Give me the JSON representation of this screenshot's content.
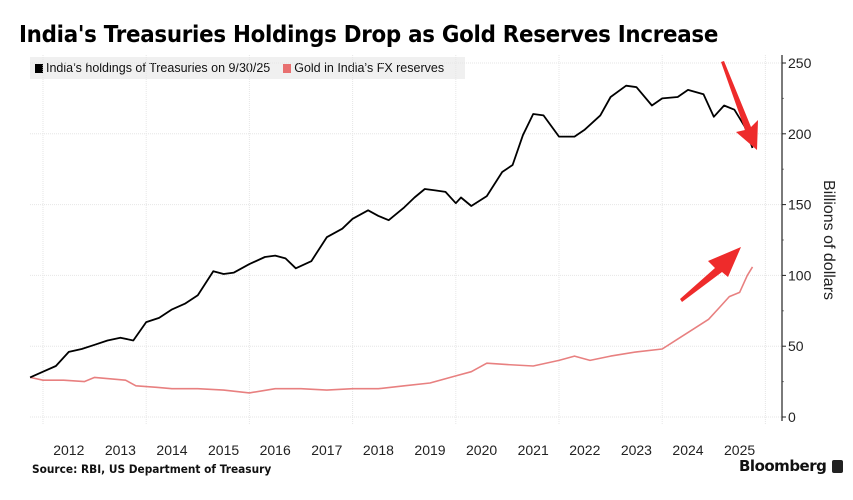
{
  "chart_data": {
    "type": "line",
    "title": "India's Treasuries Holdings Drop as Gold Reserves Increase",
    "xlabel": "",
    "ylabel": "Billions of dollars",
    "ylim": [
      0,
      250
    ],
    "xlim": [
      2011.75,
      2026.3
    ],
    "y_ticks": [
      0,
      50,
      100,
      150,
      200,
      250
    ],
    "x_tick_labels": [
      "2012",
      "2013",
      "2014",
      "2015",
      "2016",
      "2017",
      "2018",
      "2019",
      "2020",
      "2021",
      "2022",
      "2023",
      "2024",
      "2025"
    ],
    "grid": true,
    "legend_position": "top-left",
    "series": [
      {
        "name": "India's holdings of Treasuries on 9/30/25",
        "color": "#000000",
        "x": [
          2011.75,
          2012.0,
          2012.25,
          2012.5,
          2012.75,
          2013.0,
          2013.25,
          2013.5,
          2013.75,
          2014.0,
          2014.25,
          2014.5,
          2014.75,
          2015.0,
          2015.3,
          2015.5,
          2015.7,
          2016.0,
          2016.3,
          2016.5,
          2016.7,
          2016.9,
          2017.2,
          2017.5,
          2017.8,
          2018.0,
          2018.3,
          2018.5,
          2018.7,
          2019.0,
          2019.2,
          2019.4,
          2019.6,
          2019.8,
          2020.0,
          2020.1,
          2020.3,
          2020.6,
          2020.9,
          2021.1,
          2021.3,
          2021.5,
          2021.7,
          2022.0,
          2022.3,
          2022.5,
          2022.8,
          2023.0,
          2023.3,
          2023.5,
          2023.8,
          2024.0,
          2024.3,
          2024.5,
          2024.8,
          2025.0,
          2025.2,
          2025.4,
          2025.6,
          2025.75
        ],
        "values": [
          28,
          32,
          36,
          46,
          48,
          51,
          54,
          56,
          54,
          67,
          70,
          76,
          80,
          86,
          103,
          101,
          102,
          108,
          113,
          114,
          112,
          105,
          110,
          127,
          133,
          140,
          146,
          142,
          139,
          148,
          155,
          161,
          160,
          159,
          151,
          155,
          149,
          156,
          173,
          178,
          199,
          214,
          213,
          198,
          198,
          203,
          213,
          226,
          234,
          233,
          220,
          225,
          226,
          231,
          228,
          212,
          220,
          217,
          205,
          190
        ]
      },
      {
        "name": "Gold in India's FX reserves",
        "color": "#e88080",
        "x": [
          2011.75,
          2012.0,
          2012.4,
          2012.8,
          2013.0,
          2013.3,
          2013.6,
          2013.8,
          2014.2,
          2014.5,
          2015.0,
          2015.5,
          2016.0,
          2016.5,
          2017.0,
          2017.5,
          2018.0,
          2018.5,
          2019.0,
          2019.5,
          2020.0,
          2020.3,
          2020.6,
          2021.0,
          2021.5,
          2022.0,
          2022.3,
          2022.6,
          2023.0,
          2023.5,
          2024.0,
          2024.3,
          2024.6,
          2024.9,
          2025.1,
          2025.3,
          2025.5,
          2025.65,
          2025.75
        ],
        "values": [
          28,
          26,
          26,
          25,
          28,
          27,
          26,
          22,
          21,
          20,
          20,
          19,
          17,
          20,
          20,
          19,
          20,
          20,
          22,
          24,
          29,
          32,
          38,
          37,
          36,
          40,
          43,
          40,
          43,
          46,
          48,
          55,
          62,
          69,
          77,
          85,
          88,
          100,
          106
        ]
      }
    ]
  },
  "header": {
    "title": "India's Treasuries Holdings Drop as Gold Reserves Increase"
  },
  "legend": {
    "items": [
      {
        "label": "India’s holdings of Treasuries on 9/30/25",
        "color": "#000000"
      },
      {
        "label": "Gold in India’s FX reserves",
        "color": "#e87070"
      }
    ]
  },
  "annotations": {
    "arrow_down_color": "#ee2b2b",
    "arrow_up_color": "#ee2b2b"
  },
  "footer": {
    "source": "Source: RBI, US Department of Treasury",
    "brand": "Bloomberg"
  }
}
